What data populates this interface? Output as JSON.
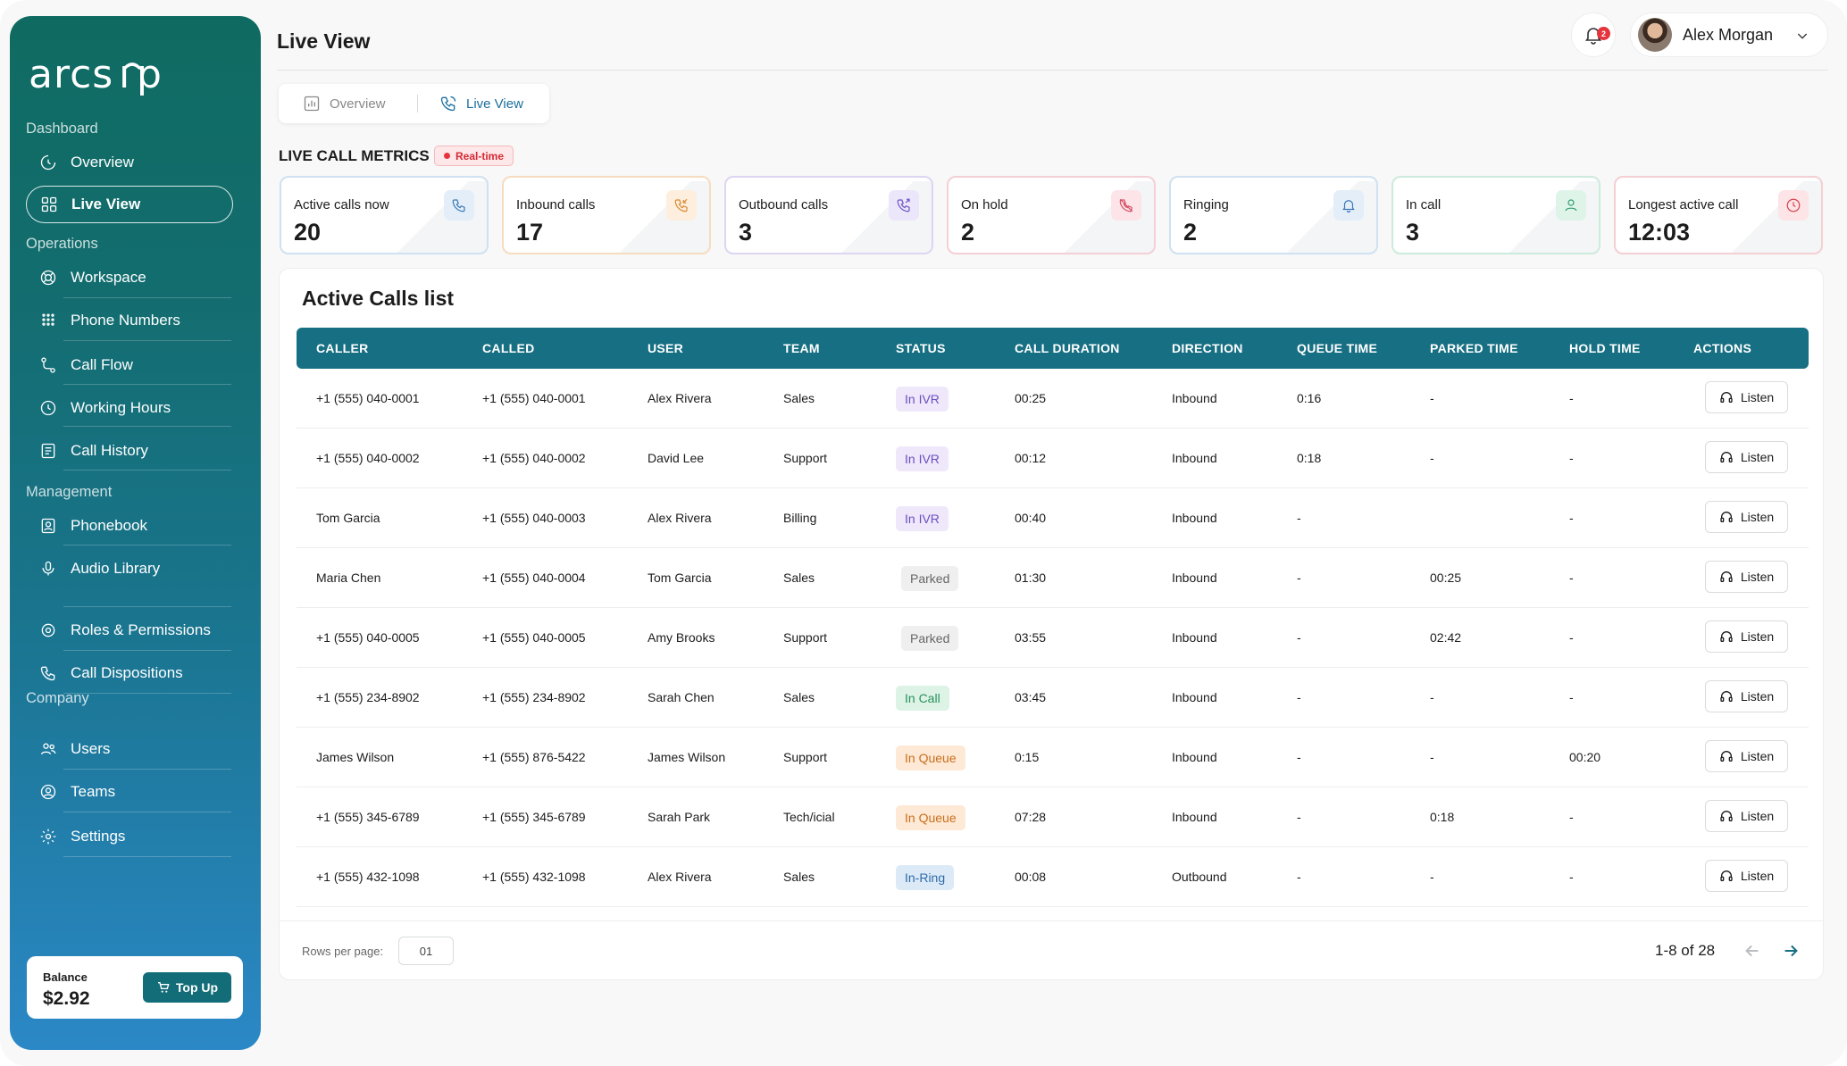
{
  "app": {
    "brand": "arcsip"
  },
  "sidebar": {
    "sections": [
      "Dashboard",
      "Operations",
      "Management",
      "Company"
    ],
    "items": [
      {
        "label": "Overview",
        "icon": "overview-icon"
      },
      {
        "label": "Live View",
        "icon": "live-view-icon",
        "active": true
      },
      {
        "label": "Workspace",
        "icon": "workspace-icon"
      },
      {
        "label": "Phone Numbers",
        "icon": "phone-numbers-icon"
      },
      {
        "label": "Call Flow",
        "icon": "call-flow-icon"
      },
      {
        "label": "Working Hours",
        "icon": "working-hours-icon"
      },
      {
        "label": "Call History",
        "icon": "call-history-icon"
      },
      {
        "label": "Phonebook",
        "icon": "phonebook-icon"
      },
      {
        "label": "Audio Library",
        "icon": "audio-library-icon"
      },
      {
        "label": "Roles & Permissions",
        "icon": "roles-icon"
      },
      {
        "label": "Call Dispositions",
        "icon": "call-dispositions-icon"
      },
      {
        "label": "Users",
        "icon": "users-icon"
      },
      {
        "label": "Teams",
        "icon": "teams-icon"
      },
      {
        "label": "Settings",
        "icon": "settings-icon"
      }
    ],
    "balance": {
      "label": "Balance",
      "amount": "$2.92",
      "topup_label": "Top Up"
    }
  },
  "header": {
    "title": "Live View",
    "notifications_count": "2",
    "user_name": "Alex Morgan"
  },
  "tabs": [
    {
      "label": "Overview",
      "active": false
    },
    {
      "label": "Live View",
      "active": true
    }
  ],
  "metrics": {
    "title": "LIVE CALL METRICS",
    "badge": "Real-time",
    "cards": [
      {
        "label": "Active calls now",
        "value": "20",
        "border": "#cfe1f2",
        "icon_bg": "#e3eef9",
        "icon_color": "#3a78b5",
        "icon": "phone-icon"
      },
      {
        "label": "Inbound calls",
        "value": "17",
        "border": "#f6dcbf",
        "icon_bg": "#fdeedd",
        "icon_color": "#d8892f",
        "icon": "incoming-call-icon"
      },
      {
        "label": "Outbound calls",
        "value": "3",
        "border": "#ddd5f2",
        "icon_bg": "#ece6fa",
        "icon_color": "#6d53c3",
        "icon": "outgoing-call-icon"
      },
      {
        "label": "On hold",
        "value": "2",
        "border": "#f4cfd6",
        "icon_bg": "#fce4e8",
        "icon_color": "#d54d63",
        "icon": "call-hold-icon"
      },
      {
        "label": "Ringing",
        "value": "2",
        "border": "#cfe1f2",
        "icon_bg": "#e3eef9",
        "icon_color": "#3a78b5",
        "icon": "bell-icon"
      },
      {
        "label": "In call",
        "value": "3",
        "border": "#cdebdd",
        "icon_bg": "#dff4e9",
        "icon_color": "#2e9d68",
        "icon": "user-icon"
      },
      {
        "label": "Longest active call",
        "value": "12:03",
        "border": "#f4cfd3",
        "icon_bg": "#fde4e6",
        "icon_color": "#d8424e",
        "icon": "clock-icon"
      }
    ]
  },
  "table": {
    "title": "Active Calls list",
    "columns": [
      "CALLER",
      "CALLED",
      "USER",
      "TEAM",
      "STATUS",
      "CALL DURATION",
      "DIRECTION",
      "QUEUE TIME",
      "PARKED TIME",
      "HOLD TIME",
      "ACTIONS"
    ],
    "action_label": "Listen",
    "status_colors": {
      "In IVR": {
        "bg": "#efe8fb",
        "fg": "#6a4fc0"
      },
      "Parked": {
        "bg": "#efefef",
        "fg": "#666666"
      },
      "In Call": {
        "bg": "#dcf3e6",
        "fg": "#2b8f5d"
      },
      "In Queue": {
        "bg": "#fde9d5",
        "fg": "#c96e1c"
      },
      "In-Ring": {
        "bg": "#dceaf7",
        "fg": "#2e6aa8"
      }
    },
    "rows": [
      {
        "caller": "+1 (555) 040-0001",
        "called": "+1 (555) 040-0001",
        "user": "Alex Rivera",
        "team": "Sales",
        "status": "In IVR",
        "duration": "00:25",
        "direction": "Inbound",
        "queue": "0:16",
        "parked": "-",
        "hold": "-"
      },
      {
        "caller": "+1 (555) 040-0002",
        "called": "+1 (555) 040-0002",
        "user": "David Lee",
        "team": "Support",
        "status": "In IVR",
        "duration": "00:12",
        "direction": "Inbound",
        "queue": "0:18",
        "parked": "-",
        "hold": "-"
      },
      {
        "caller": "Tom Garcia",
        "called": "+1 (555) 040-0003",
        "user": "Alex Rivera",
        "team": "Billing",
        "status": "In IVR",
        "duration": "00:40",
        "direction": "Inbound",
        "queue": "-",
        "parked": "",
        "hold": "-"
      },
      {
        "caller": "Maria Chen",
        "called": "+1 (555) 040-0004",
        "user": "Tom Garcia",
        "team": "Sales",
        "status": "Parked",
        "duration": "01:30",
        "direction": "Inbound",
        "queue": "-",
        "parked": "00:25",
        "hold": "-"
      },
      {
        "caller": "+1 (555) 040-0005",
        "called": "+1 (555) 040-0005",
        "user": "Amy Brooks",
        "team": "Support",
        "status": "Parked",
        "duration": "03:55",
        "direction": "Inbound",
        "queue": "-",
        "parked": "02:42",
        "hold": "-"
      },
      {
        "caller": "+1 (555) 234-8902",
        "called": "+1 (555) 234-8902",
        "user": "Sarah Chen",
        "team": "Sales",
        "status": "In Call",
        "duration": "03:45",
        "direction": "Inbound",
        "queue": "-",
        "parked": "-",
        "hold": "-"
      },
      {
        "caller": "James Wilson",
        "called": "+1 (555) 876-5422",
        "user": "James Wilson",
        "team": "Support",
        "status": "In Queue",
        "duration": "0:15",
        "direction": "Inbound",
        "queue": "-",
        "parked": "-",
        "hold": "00:20"
      },
      {
        "caller": "+1 (555) 345-6789",
        "called": "+1 (555) 345-6789",
        "user": "Sarah Park",
        "team": "Tech/icial",
        "status": "In Queue",
        "duration": "07:28",
        "direction": "Inbound",
        "queue": "-",
        "parked": "0:18",
        "hold": "-"
      },
      {
        "caller": "+1 (555) 432-1098",
        "called": "+1 (555) 432-1098",
        "user": "Alex Rivera",
        "team": "Sales",
        "status": "In-Ring",
        "duration": "00:08",
        "direction": "Outbound",
        "queue": "-",
        "parked": "-",
        "hold": "-"
      }
    ],
    "pagination": {
      "rows_per_page_label": "Rows per page:",
      "rows_per_page": "01",
      "range": "1-8 of 28"
    }
  }
}
